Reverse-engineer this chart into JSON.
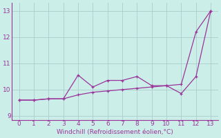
{
  "x": [
    0,
    1,
    2,
    3,
    4,
    5,
    6,
    7,
    8,
    9,
    10,
    11,
    12,
    13
  ],
  "line_jagged": [
    9.6,
    9.6,
    9.65,
    9.65,
    10.55,
    10.1,
    10.35,
    10.35,
    10.5,
    10.15,
    10.15,
    9.85,
    10.5,
    13.0
  ],
  "line_smooth": [
    9.6,
    9.6,
    9.65,
    9.65,
    9.8,
    9.9,
    9.95,
    10.0,
    10.05,
    10.1,
    10.15,
    10.2,
    12.2,
    13.0
  ],
  "line_color": "#993399",
  "bg_color": "#cceee8",
  "grid_color": "#aacccc",
  "xlabel": "Windchill (Refroidissement éolien,°C)",
  "ylim": [
    8.85,
    13.3
  ],
  "xlim": [
    -0.5,
    13.5
  ],
  "yticks": [
    9,
    10,
    11,
    12,
    13
  ],
  "xticks": [
    0,
    1,
    2,
    3,
    4,
    5,
    6,
    7,
    8,
    9,
    10,
    11,
    12,
    13
  ]
}
